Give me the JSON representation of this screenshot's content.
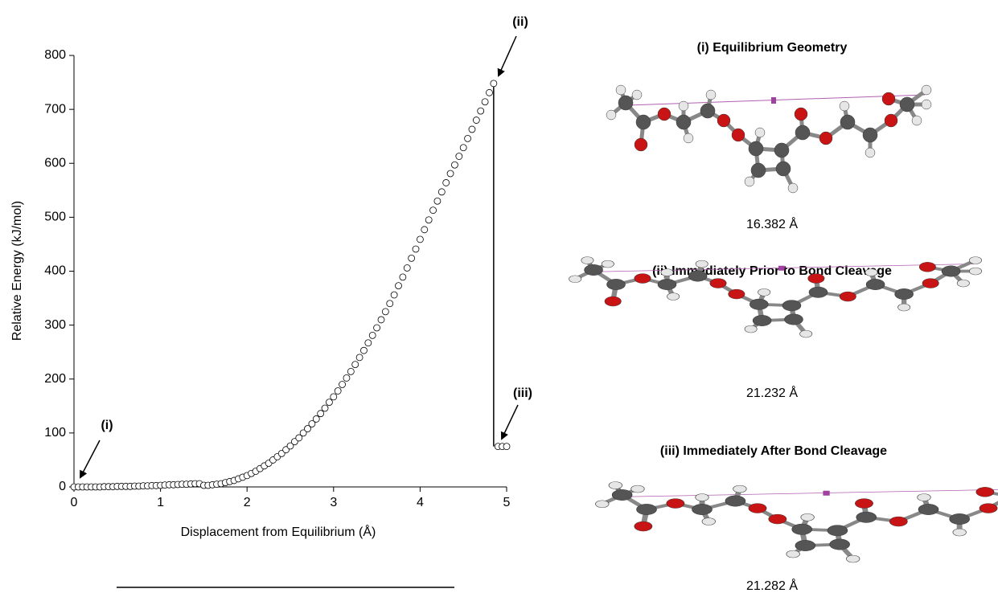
{
  "chart_data": {
    "type": "scatter",
    "xlabel": "Displacement from Equilibrium (Å)",
    "ylabel": "Relative Energy (kJ/mol)",
    "xlim": [
      0,
      5
    ],
    "ylim": [
      0,
      800
    ],
    "xticks": [
      0,
      1,
      2,
      3,
      4,
      5
    ],
    "yticks": [
      0,
      100,
      200,
      300,
      400,
      500,
      600,
      700,
      800
    ],
    "color": "#000000",
    "annotations": [
      "(i)",
      "(ii)",
      "(iii)"
    ],
    "x": [
      0,
      0.05,
      0.1,
      0.15,
      0.2,
      0.25,
      0.3,
      0.35,
      0.4,
      0.45,
      0.5,
      0.55,
      0.6,
      0.65,
      0.7,
      0.75,
      0.8,
      0.85,
      0.9,
      0.95,
      1.0,
      1.05,
      1.1,
      1.15,
      1.2,
      1.25,
      1.3,
      1.35,
      1.4,
      1.45,
      1.5,
      1.55,
      1.6,
      1.65,
      1.7,
      1.75,
      1.8,
      1.85,
      1.9,
      1.95,
      2.0,
      2.05,
      2.1,
      2.15,
      2.2,
      2.25,
      2.3,
      2.35,
      2.4,
      2.45,
      2.5,
      2.55,
      2.6,
      2.65,
      2.7,
      2.75,
      2.8,
      2.85,
      2.9,
      2.95,
      3.0,
      3.05,
      3.1,
      3.15,
      3.2,
      3.25,
      3.3,
      3.35,
      3.4,
      3.45,
      3.5,
      3.55,
      3.6,
      3.65,
      3.7,
      3.75,
      3.8,
      3.85,
      3.9,
      3.95,
      4.0,
      4.05,
      4.1,
      4.15,
      4.2,
      4.25,
      4.3,
      4.35,
      4.4,
      4.45,
      4.5,
      4.55,
      4.6,
      4.65,
      4.7,
      4.75,
      4.8,
      4.85,
      4.9,
      4.95,
      5.0
    ],
    "values": [
      0,
      0,
      0,
      0,
      0,
      0,
      0,
      0.5,
      0.5,
      0.5,
      1,
      1,
      1,
      1,
      1.5,
      1.5,
      2,
      2,
      2.5,
      2.5,
      3,
      3.5,
      4,
      4,
      4.5,
      5,
      5,
      5.5,
      6,
      6,
      3,
      3,
      4,
      5,
      6,
      8,
      10,
      12,
      15,
      18,
      21,
      25,
      29,
      34,
      39,
      44,
      50,
      56,
      62,
      69,
      76,
      84,
      91,
      100,
      108,
      117,
      126,
      136,
      146,
      157,
      167,
      178,
      190,
      202,
      214,
      227,
      240,
      253,
      267,
      281,
      295,
      310,
      325,
      340,
      356,
      373,
      389,
      406,
      424,
      441,
      459,
      477,
      495,
      513,
      530,
      547,
      564,
      581,
      597,
      613,
      629,
      646,
      663,
      680,
      697,
      714,
      731,
      748,
      75,
      75,
      75
    ]
  },
  "panels": [
    {
      "title": "(i) Equilibrium Geometry",
      "distance": "16.382 Å"
    },
    {
      "title": "(ii) Immediately Prior to Bond Cleavage",
      "distance": "21.232 Å"
    },
    {
      "title": "(iii) Immediately After Bond Cleavage",
      "distance": "21.282 Å"
    }
  ]
}
